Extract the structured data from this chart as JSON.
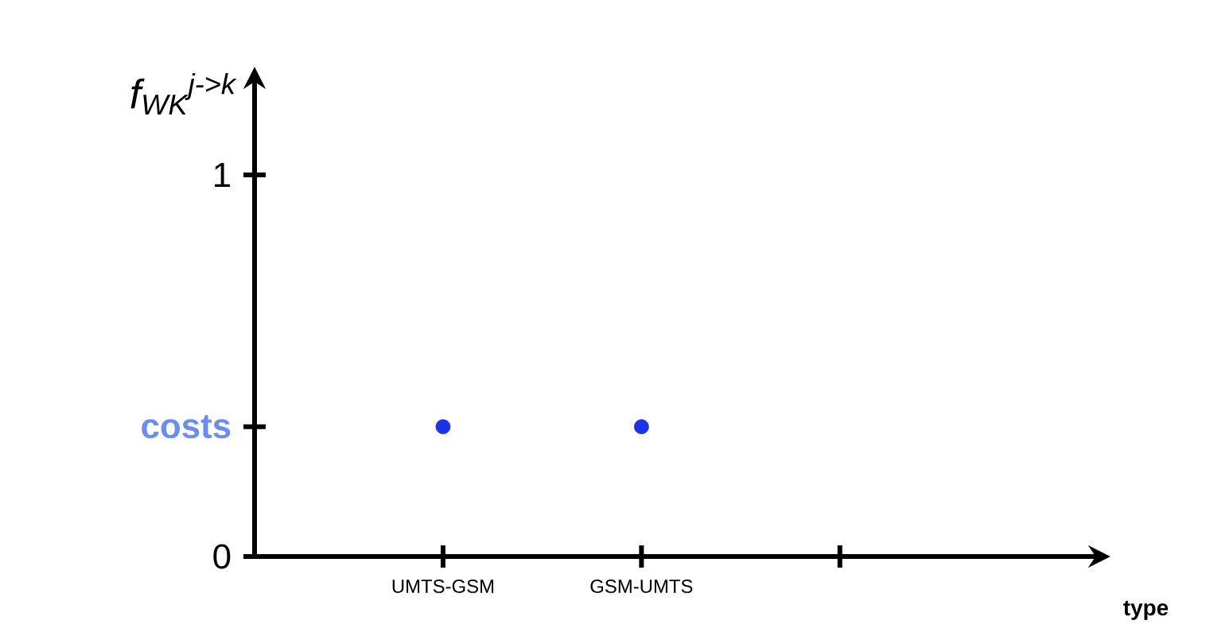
{
  "chart_data": {
    "type": "scatter",
    "xlabel": "type",
    "ylabel": "f$_{WK}$$^{j->k}$",
    "categories": [
      "UMTS-GSM",
      "GSM-UMTS",
      null
    ],
    "values": [
      0.34,
      0.34,
      null
    ],
    "color": "#1a33e6",
    "marker": "circle",
    "ylim": [
      0,
      1.25
    ],
    "yticks": [
      0,
      {
        "value": 0.34,
        "label": "costs"
      },
      1
    ]
  }
}
